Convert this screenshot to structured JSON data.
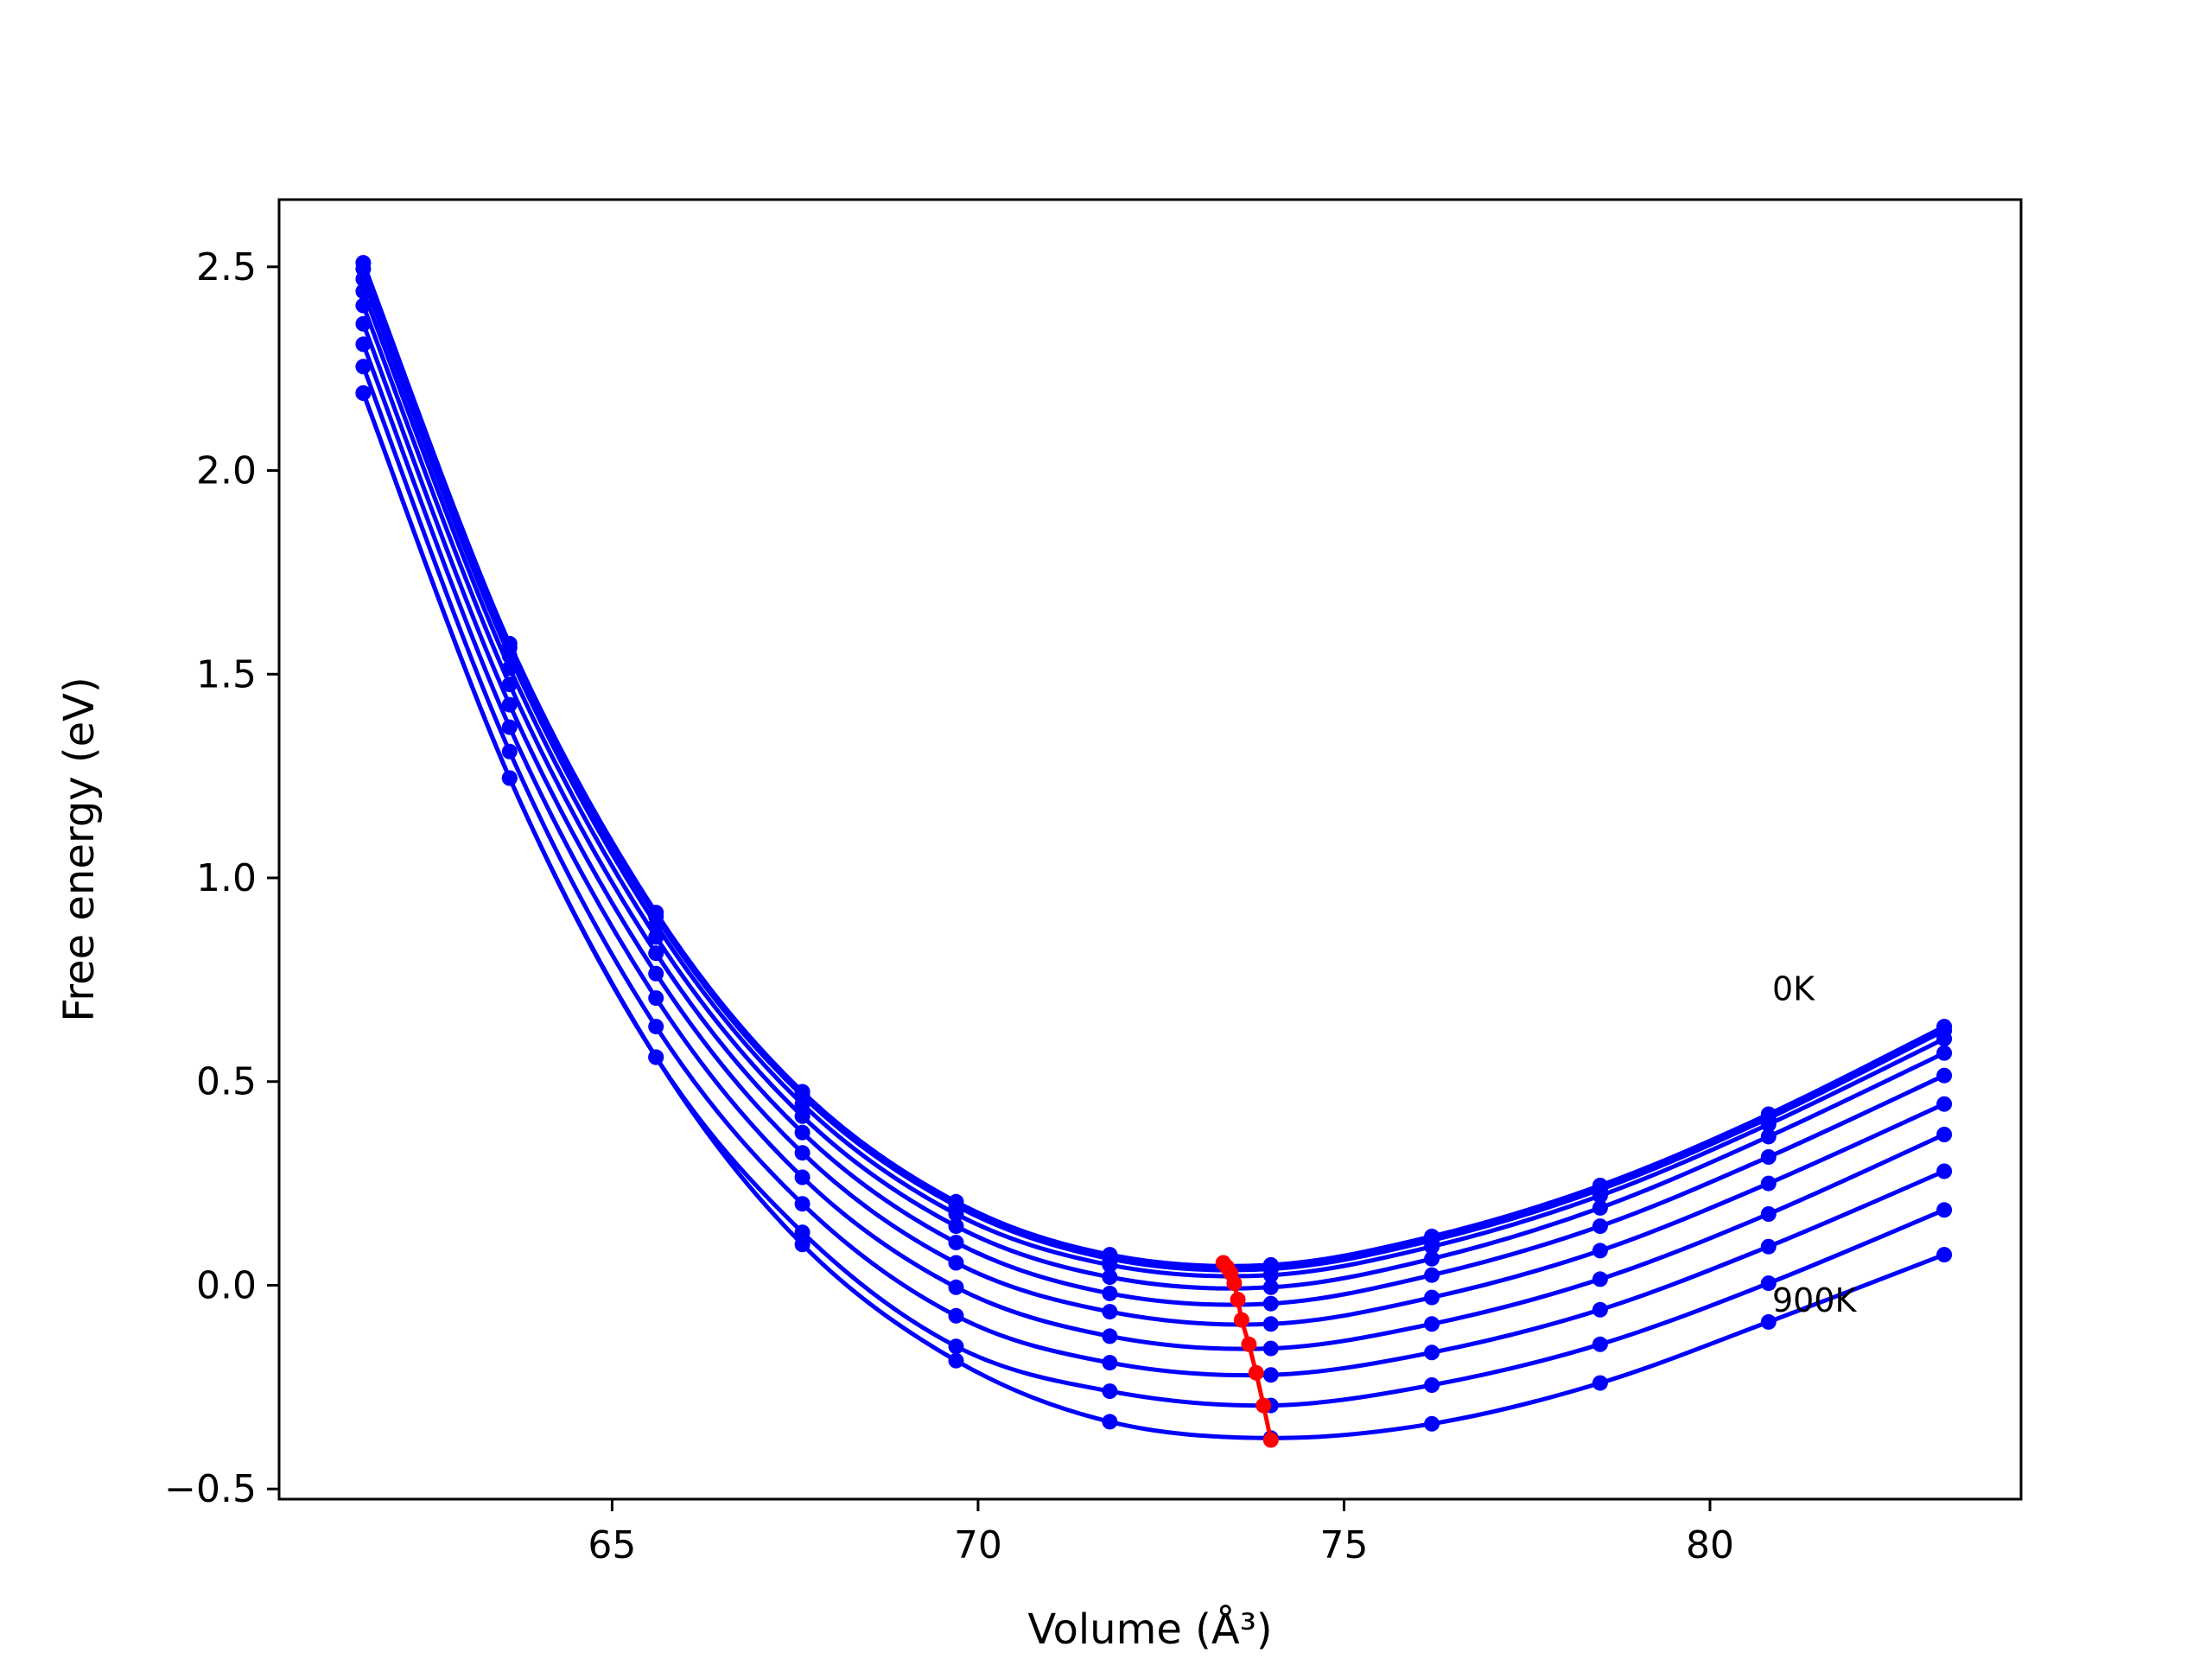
{
  "chart_data": {
    "type": "line",
    "title": "",
    "xlabel": "Volume (Å³)",
    "ylabel": "Free energy (eV)",
    "xlim": [
      60.45,
      84.25
    ],
    "ylim": [
      -0.525,
      2.665
    ],
    "grid": false,
    "x_ticks": [
      {
        "value": 65,
        "label": "65"
      },
      {
        "value": 70,
        "label": "70"
      },
      {
        "value": 75,
        "label": "75"
      },
      {
        "value": 80,
        "label": "80"
      }
    ],
    "y_ticks": [
      {
        "value": -0.5,
        "label": "−0.5"
      },
      {
        "value": 0.0,
        "label": "0.0"
      },
      {
        "value": 0.5,
        "label": "0.5"
      },
      {
        "value": 1.0,
        "label": "1.0"
      },
      {
        "value": 1.5,
        "label": "1.5"
      },
      {
        "value": 2.0,
        "label": "2.0"
      },
      {
        "value": 2.5,
        "label": "2.5"
      }
    ],
    "series_color": "#0000ff",
    "min_color": "#ff0000",
    "x": [
      61.6,
      63.6,
      65.6,
      67.6,
      69.7,
      71.8,
      74.0,
      76.2,
      78.5,
      80.8,
      83.2
    ],
    "series": [
      {
        "values": [
          2.51,
          1.575,
          0.915,
          0.475,
          0.205,
          0.075,
          0.05,
          0.12,
          0.245,
          0.42,
          0.635
        ]
      },
      {
        "values": [
          2.495,
          1.565,
          0.905,
          0.465,
          0.195,
          0.065,
          0.04,
          0.11,
          0.235,
          0.41,
          0.625
        ]
      },
      {
        "values": [
          2.47,
          1.545,
          0.885,
          0.445,
          0.175,
          0.05,
          0.025,
          0.095,
          0.22,
          0.395,
          0.605
        ]
      },
      {
        "values": [
          2.44,
          1.515,
          0.855,
          0.415,
          0.145,
          0.02,
          -0.005,
          0.065,
          0.19,
          0.365,
          0.57
        ]
      },
      {
        "values": [
          2.405,
          1.475,
          0.815,
          0.375,
          0.105,
          -0.02,
          -0.045,
          0.025,
          0.145,
          0.315,
          0.515
        ]
      },
      {
        "values": [
          2.36,
          1.425,
          0.765,
          0.325,
          0.055,
          -0.065,
          -0.095,
          -0.03,
          0.085,
          0.25,
          0.445
        ]
      },
      {
        "values": [
          2.31,
          1.37,
          0.705,
          0.265,
          -0.005,
          -0.125,
          -0.155,
          -0.095,
          0.015,
          0.175,
          0.37
        ]
      },
      {
        "values": [
          2.255,
          1.31,
          0.635,
          0.2,
          -0.075,
          -0.19,
          -0.22,
          -0.165,
          -0.06,
          0.095,
          0.28
        ]
      },
      {
        "values": [
          2.19,
          1.245,
          0.56,
          0.13,
          -0.15,
          -0.26,
          -0.295,
          -0.245,
          -0.145,
          0.005,
          0.185
        ]
      },
      {
        "values": [
          2.19,
          1.245,
          0.56,
          0.1,
          -0.185,
          -0.335,
          -0.375,
          -0.34,
          -0.24,
          -0.09,
          0.075
        ]
      }
    ],
    "min_curve": {
      "x": [
        73.35,
        73.4,
        73.45,
        73.5,
        73.55,
        73.6,
        73.7,
        73.8,
        73.9,
        74.0
      ],
      "y": [
        0.055,
        0.045,
        0.03,
        0.005,
        -0.035,
        -0.085,
        -0.145,
        -0.215,
        -0.295,
        -0.38
      ]
    },
    "annotations": [
      {
        "text": "0K",
        "x": 80.85,
        "y": 0.7
      },
      {
        "text": "900K",
        "x": 80.85,
        "y": -0.065
      }
    ]
  }
}
